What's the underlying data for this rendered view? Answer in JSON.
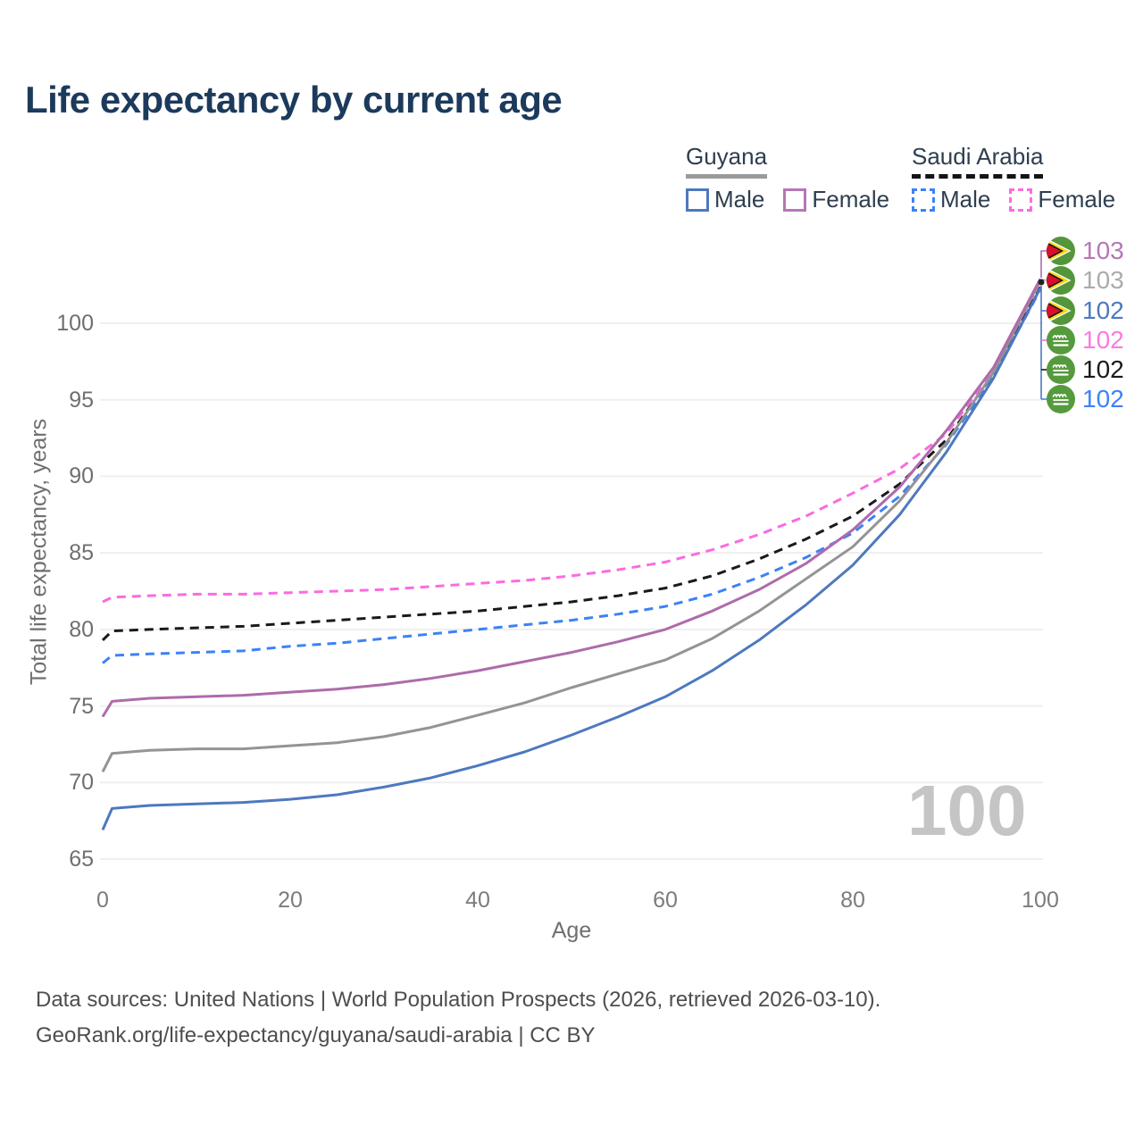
{
  "title": "Life expectancy by current age",
  "legend": {
    "groups": [
      {
        "label": "Guyana",
        "line_style": "solid",
        "underline_color": "#9a9a9a"
      },
      {
        "label": "Saudi Arabia",
        "line_style": "dashed",
        "underline_color": "#141414"
      }
    ],
    "items": [
      {
        "group": "Guyana",
        "label": "Male",
        "color": "#4d79be",
        "style": "solid"
      },
      {
        "group": "Guyana",
        "label": "Female",
        "color": "#b577b5",
        "style": "solid"
      },
      {
        "group": "Saudi Arabia",
        "label": "Male",
        "color": "#3b82f6",
        "style": "dashed"
      },
      {
        "group": "Saudi Arabia",
        "label": "Female",
        "color": "#fb6be0",
        "style": "dashed"
      }
    ]
  },
  "chart_data": {
    "type": "line",
    "title": "Life expectancy by current age",
    "xlabel": "Age",
    "ylabel": "Total life expectancy, years",
    "xlim": [
      0,
      100
    ],
    "ylim": [
      65,
      103.5
    ],
    "xticks": [
      0,
      20,
      40,
      60,
      80,
      100
    ],
    "yticks": [
      65,
      70,
      75,
      80,
      85,
      90,
      95,
      100
    ],
    "grid": "horizontal",
    "legend_position": "top-right",
    "x": [
      0,
      1,
      5,
      10,
      15,
      20,
      25,
      30,
      35,
      40,
      45,
      50,
      55,
      60,
      65,
      70,
      75,
      80,
      85,
      90,
      95,
      100
    ],
    "series": [
      {
        "id": "saudi-arabia-female",
        "name": "Saudi Arabia Female",
        "color": "#fb6be0",
        "dash": true,
        "values": [
          81.8,
          82.1,
          82.2,
          82.3,
          82.3,
          82.4,
          82.5,
          82.6,
          82.8,
          83.0,
          83.2,
          83.5,
          83.9,
          84.4,
          85.2,
          86.2,
          87.4,
          88.9,
          90.5,
          92.8,
          96.9,
          102.4
        ]
      },
      {
        "id": "saudi-arabia-total",
        "name": "Saudi Arabia Total",
        "color": "#1a1a1a",
        "dash": true,
        "values": [
          79.3,
          79.9,
          80.0,
          80.1,
          80.2,
          80.4,
          80.6,
          80.8,
          81.0,
          81.2,
          81.5,
          81.8,
          82.2,
          82.7,
          83.5,
          84.6,
          85.9,
          87.4,
          89.5,
          92.4,
          96.7,
          102.35
        ]
      },
      {
        "id": "saudi-arabia-male",
        "name": "Saudi Arabia Male",
        "color": "#3b82f6",
        "dash": true,
        "values": [
          77.8,
          78.3,
          78.4,
          78.5,
          78.6,
          78.9,
          79.1,
          79.4,
          79.7,
          80.0,
          80.3,
          80.6,
          81.0,
          81.5,
          82.3,
          83.4,
          84.7,
          86.3,
          88.7,
          92.1,
          96.5,
          102.2
        ]
      },
      {
        "id": "guyana-male",
        "name": "Guyana Male",
        "color": "#4d79be",
        "dash": false,
        "values": [
          66.9,
          68.3,
          68.5,
          68.6,
          68.7,
          68.9,
          69.2,
          69.7,
          70.3,
          71.1,
          72.0,
          73.1,
          74.3,
          75.6,
          77.3,
          79.3,
          81.6,
          84.2,
          87.5,
          91.6,
          96.4,
          102.3
        ]
      },
      {
        "id": "guyana-total",
        "name": "Guyana Total",
        "color": "#949494",
        "dash": false,
        "values": [
          70.7,
          71.9,
          72.1,
          72.2,
          72.2,
          72.4,
          72.6,
          73.0,
          73.6,
          74.4,
          75.2,
          76.2,
          77.1,
          78.0,
          79.4,
          81.2,
          83.3,
          85.4,
          88.4,
          92.2,
          96.8,
          102.8
        ]
      },
      {
        "id": "guyana-female",
        "name": "Guyana Female",
        "color": "#ae6bab",
        "dash": false,
        "values": [
          74.3,
          75.3,
          75.5,
          75.6,
          75.7,
          75.9,
          76.1,
          76.4,
          76.8,
          77.3,
          77.9,
          78.5,
          79.2,
          80.0,
          81.2,
          82.6,
          84.3,
          86.5,
          89.3,
          93.0,
          97.1,
          102.9
        ]
      }
    ],
    "end_labels": [
      {
        "country": "Guyana",
        "flag": "guyana",
        "series": "Guyana Female",
        "value": "103",
        "color": "#b577b5"
      },
      {
        "country": "Guyana",
        "flag": "guyana",
        "series": "Guyana Total",
        "value": "103",
        "color": "#ababab"
      },
      {
        "country": "Guyana",
        "flag": "guyana",
        "series": "Guyana Male",
        "value": "102",
        "color": "#4d79be"
      },
      {
        "country": "Saudi Arabia",
        "flag": "saudi-arabia",
        "series": "Saudi Arabia Female",
        "value": "102",
        "color": "#fb7ae4"
      },
      {
        "country": "Saudi Arabia",
        "flag": "saudi-arabia",
        "series": "Saudi Arabia Total",
        "value": "102",
        "color": "#1a1a1a"
      },
      {
        "country": "Saudi Arabia",
        "flag": "saudi-arabia",
        "series": "Saudi Arabia Male",
        "value": "102",
        "color": "#3b82f6"
      }
    ],
    "hover_age_label": "100"
  },
  "footer": {
    "line1": "Data sources: United Nations | World Population Prospects (2026, retrieved 2026-03-10).",
    "line2": "GeoRank.org/life-expectancy/guyana/saudi-arabia | CC BY"
  }
}
